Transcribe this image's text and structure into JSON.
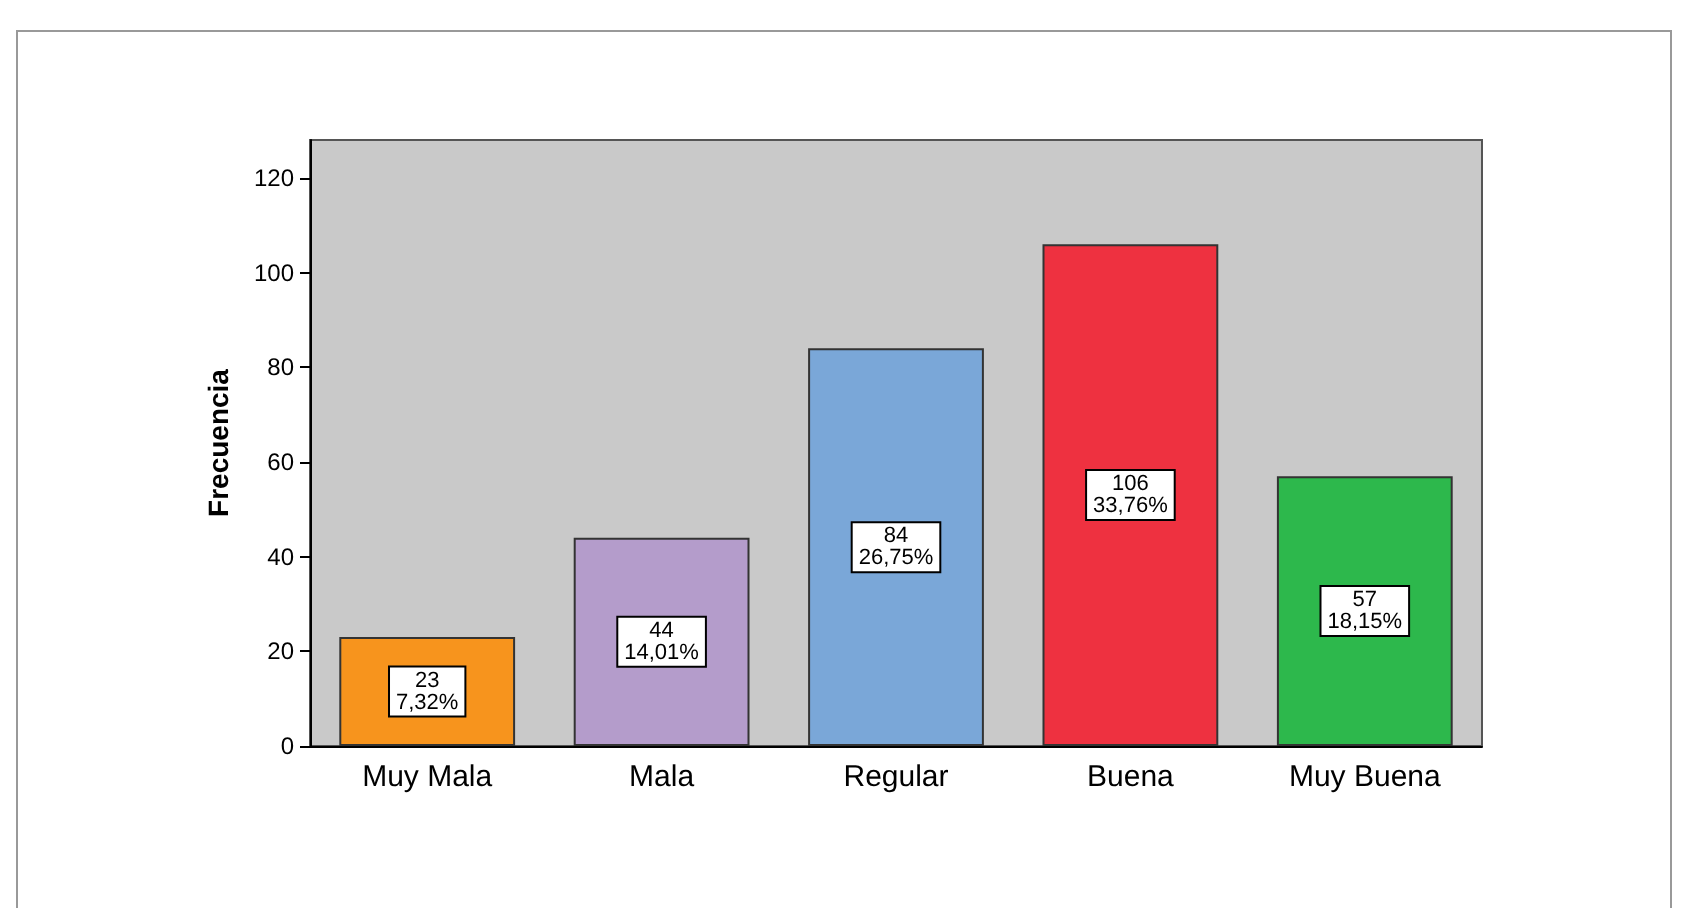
{
  "chart_data": {
    "type": "bar",
    "ylabel": "Frecuencia",
    "categories": [
      "Muy Mala",
      "Mala",
      "Regular",
      "Buena",
      "Muy Buena"
    ],
    "values": [
      23,
      44,
      84,
      106,
      57
    ],
    "colors": [
      "#f7941d",
      "#b49ccb",
      "#7aa7d8",
      "#ee3140",
      "#2db84c"
    ],
    "value_labels": [
      "23\n7,32%",
      "44\n14,01%",
      "84\n26,75%",
      "106\n33,76%",
      "57\n18,15%"
    ],
    "ylim": [
      0,
      128
    ],
    "yticks": [
      0,
      20,
      40,
      60,
      80,
      100,
      120
    ],
    "grid": false
  }
}
